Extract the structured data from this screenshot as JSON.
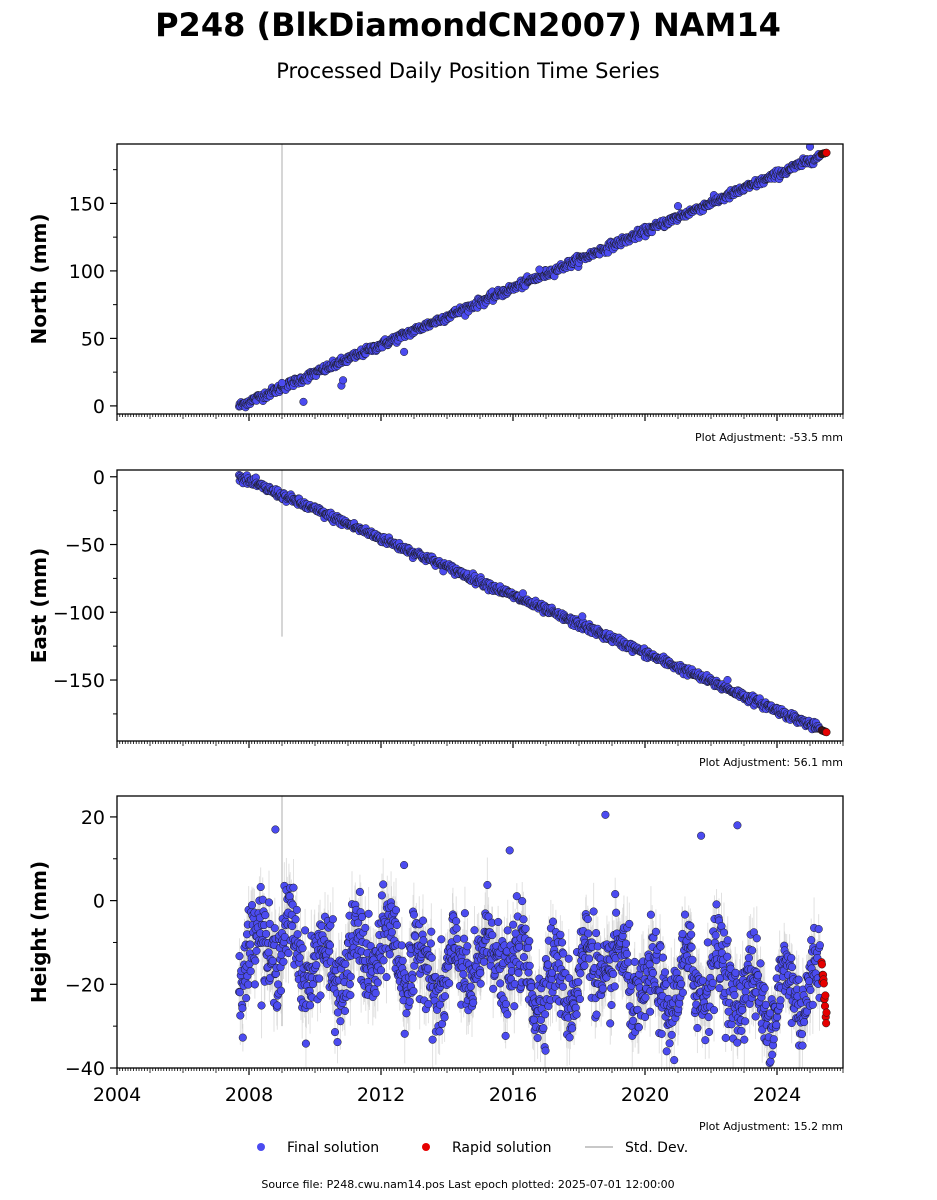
{
  "figure": {
    "title": "P248 (BlkDiamondCN2007) NAM14",
    "subtitle": "Processed Daily Position Time Series",
    "source_note": "Source file: P248.cwu.nam14.pos  Last epoch plotted: 2025-07-01 12:00:00"
  },
  "legend": {
    "final": "Final solution",
    "rapid": "Rapid solution",
    "stddev": "Std. Dev."
  },
  "colors": {
    "final": "#4b4bf0",
    "rapid": "#e60000",
    "stddev": "#c8c8c8",
    "marker_edge": "#1a1a1a"
  },
  "chart_data": [
    {
      "type": "scatter",
      "ylabel": "North (mm)",
      "adjustment": "Plot Adjustment: -53.5 mm",
      "xlim": [
        2004,
        2026
      ],
      "ylim": [
        -6,
        194
      ],
      "yticks": [
        0,
        50,
        100,
        150
      ],
      "yticklabels": [
        "0",
        "50",
        "100",
        "150"
      ],
      "xticks": [],
      "xticklabels": [],
      "final_series": {
        "start": [
          2007.7,
          0
        ],
        "end": [
          2025.3,
          185
        ],
        "noise_mm": 1.5,
        "std_mm": 1.2
      },
      "rapid_series": {
        "start": [
          2025.35,
          186.5
        ],
        "end": [
          2025.5,
          187.5
        ]
      },
      "outliers": [
        [
          2009.0,
          17
        ],
        [
          2009.65,
          3
        ],
        [
          2010.8,
          15
        ],
        [
          2010.85,
          19
        ],
        [
          2012.7,
          40
        ],
        [
          2016.8,
          101
        ],
        [
          2021.0,
          148
        ],
        [
          2025.0,
          192
        ]
      ],
      "std_spike": {
        "x": 2009.0,
        "y_from": -6,
        "y_to": 194
      }
    },
    {
      "type": "scatter",
      "ylabel": "East (mm)",
      "adjustment": "Plot Adjustment: 56.1 mm",
      "xlim": [
        2004,
        2026
      ],
      "ylim": [
        -195,
        5
      ],
      "yticks": [
        0,
        -50,
        -100,
        -150
      ],
      "yticklabels": [
        "0",
        "−50",
        "−100",
        "−150"
      ],
      "xticks": [],
      "xticklabels": [],
      "final_series": {
        "start": [
          2007.7,
          0
        ],
        "end": [
          2025.3,
          -186
        ],
        "noise_mm": 1.5,
        "std_mm": 1.2
      },
      "rapid_series": {
        "start": [
          2025.35,
          -187
        ],
        "end": [
          2025.5,
          -188.5
        ]
      },
      "outliers": [
        [
          2016.3,
          -86
        ],
        [
          2018.1,
          -103
        ],
        [
          2022.5,
          -150
        ]
      ],
      "std_spike": {
        "x": 2009.0,
        "y_from": -118,
        "y_to": 5
      }
    },
    {
      "type": "scatter",
      "ylabel": "Height (mm)",
      "adjustment": "Plot Adjustment: 15.2 mm",
      "xlim": [
        2004,
        2026
      ],
      "ylim": [
        -40,
        25
      ],
      "yticks": [
        20,
        0,
        -20,
        -40
      ],
      "yticklabels": [
        "20",
        "0",
        "−20",
        "−40"
      ],
      "xticks": [
        2004,
        2008,
        2012,
        2016,
        2020,
        2024
      ],
      "xticklabels": [
        "2004",
        "2008",
        "2012",
        "2016",
        "2020",
        "2024"
      ],
      "final_series": {
        "start": [
          2007.7,
          -12
        ],
        "end": [
          2025.3,
          -22
        ],
        "seasonal_mm": 6,
        "noise_mm": 5,
        "std_mm": 5
      },
      "rapid_series": {
        "start": [
          2025.35,
          -15
        ],
        "end": [
          2025.5,
          -29
        ]
      },
      "outliers": [
        [
          2008.8,
          17
        ],
        [
          2018.8,
          20.5
        ],
        [
          2021.7,
          15.5
        ],
        [
          2022.8,
          18
        ],
        [
          2012.7,
          8.5
        ],
        [
          2015.9,
          12
        ]
      ],
      "std_spike": {
        "x": 2009.0,
        "y_from": -30,
        "y_to": 25
      }
    }
  ]
}
